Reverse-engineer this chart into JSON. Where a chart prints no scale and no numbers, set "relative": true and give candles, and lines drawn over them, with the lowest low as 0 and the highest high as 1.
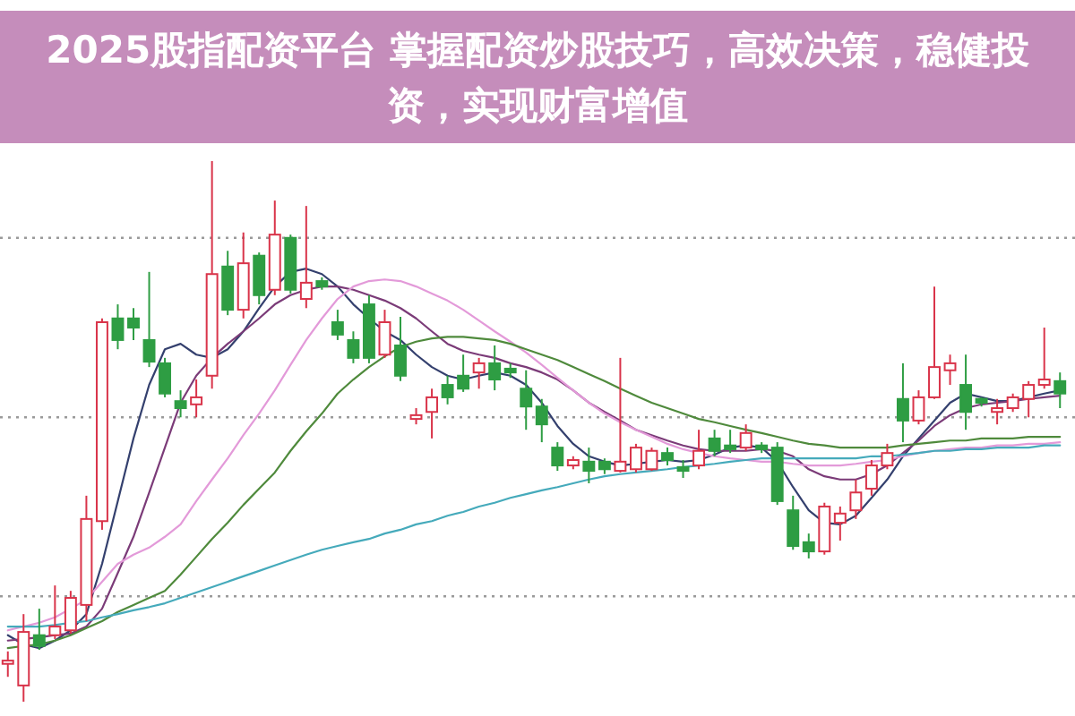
{
  "chart_data": {
    "type": "candlestick",
    "title": "2025股指配资平台 掌握配资炒股技巧，高效决策，稳健投资，实现财富增值",
    "relative": true,
    "line_style": "solid",
    "ref_lines": [
      {
        "axis": "y",
        "value": 0.858,
        "color": "#9a9a9a",
        "line_style": "dotted"
      },
      {
        "axis": "y",
        "value": 0.526,
        "color": "#9a9a9a",
        "line_style": "dotted"
      },
      {
        "axis": "y",
        "value": 0.195,
        "color": "#9a9a9a",
        "line_style": "dotted"
      }
    ],
    "categories": [
      null,
      null,
      null,
      null,
      null,
      null,
      null,
      null,
      null,
      null,
      null,
      null,
      null,
      null,
      null,
      null,
      null,
      null,
      null,
      null,
      null,
      null,
      null,
      null,
      null,
      null,
      null,
      null,
      null,
      null,
      null,
      null,
      null,
      null,
      null,
      null,
      null,
      null,
      null,
      null,
      null,
      null,
      null,
      null,
      null,
      null,
      null,
      null,
      null,
      null,
      null,
      null,
      null,
      null,
      null,
      null,
      null,
      null,
      null,
      null,
      null,
      null,
      null,
      null,
      null,
      null,
      null,
      null
    ],
    "ohlc": [
      [
        0.07,
        0.093,
        0.046,
        0.076
      ],
      [
        0.03,
        0.162,
        0,
        0.129
      ],
      [
        0.123,
        0.172,
        0.096,
        0.103
      ],
      [
        0.123,
        0.215,
        0.116,
        0.139
      ],
      [
        0.132,
        0.205,
        0.126,
        0.192
      ],
      [
        0.179,
        0.381,
        0.149,
        0.338
      ],
      [
        0.334,
        0.709,
        0.318,
        0.702
      ],
      [
        0.709,
        0.735,
        0.652,
        0.669
      ],
      [
        0.709,
        0.728,
        0.669,
        0.692
      ],
      [
        0.669,
        0.795,
        0.619,
        0.629
      ],
      [
        0.626,
        0.636,
        0.563,
        0.57
      ],
      [
        0.556,
        0.576,
        0.526,
        0.543
      ],
      [
        0.55,
        0.596,
        0.526,
        0.563
      ],
      [
        0.603,
        1,
        0.579,
        0.791
      ],
      [
        0.805,
        0.834,
        0.715,
        0.725
      ],
      [
        0.725,
        0.868,
        0.709,
        0.811
      ],
      [
        0.825,
        0.831,
        0.735,
        0.752
      ],
      [
        0.762,
        0.927,
        0.752,
        0.864
      ],
      [
        0.858,
        0.864,
        0.755,
        0.762
      ],
      [
        0.745,
        0.917,
        0.728,
        0.775
      ],
      [
        0.778,
        0.785,
        0.762,
        0.768
      ],
      [
        0.702,
        0.725,
        0.669,
        0.679
      ],
      [
        0.669,
        0.685,
        0.626,
        0.636
      ],
      [
        0.735,
        0.752,
        0.626,
        0.636
      ],
      [
        0.642,
        0.725,
        0.636,
        0.702
      ],
      [
        0.659,
        0.712,
        0.593,
        0.603
      ],
      [
        0.523,
        0.543,
        0.513,
        0.53
      ],
      [
        0.536,
        0.579,
        0.487,
        0.563
      ],
      [
        0.586,
        0.603,
        0.55,
        0.563
      ],
      [
        0.603,
        0.642,
        0.573,
        0.579
      ],
      [
        0.609,
        0.636,
        0.579,
        0.626
      ],
      [
        0.626,
        0.659,
        0.576,
        0.596
      ],
      [
        0.616,
        0.626,
        0.599,
        0.609
      ],
      [
        0.579,
        0.613,
        0.503,
        0.546
      ],
      [
        0.546,
        0.56,
        0.48,
        0.513
      ],
      [
        0.47,
        0.48,
        0.427,
        0.437
      ],
      [
        0.437,
        0.454,
        0.43,
        0.447
      ],
      [
        0.444,
        0.47,
        0.404,
        0.427
      ],
      [
        0.444,
        0.45,
        0.421,
        0.43
      ],
      [
        0.427,
        0.636,
        0.424,
        0.444
      ],
      [
        0.43,
        0.477,
        0.424,
        0.47
      ],
      [
        0.43,
        0.47,
        0.427,
        0.464
      ],
      [
        0.46,
        0.47,
        0.437,
        0.447
      ],
      [
        0.434,
        0.447,
        0.414,
        0.427
      ],
      [
        0.437,
        0.503,
        0.43,
        0.464
      ],
      [
        0.487,
        0.503,
        0.454,
        0.464
      ],
      [
        0.474,
        0.503,
        0.46,
        0.467
      ],
      [
        0.47,
        0.513,
        0.464,
        0.497
      ],
      [
        0.474,
        0.48,
        0.46,
        0.467
      ],
      [
        0.47,
        0.48,
        0.364,
        0.371
      ],
      [
        0.354,
        0.381,
        0.281,
        0.288
      ],
      [
        0.295,
        0.311,
        0.265,
        0.278
      ],
      [
        0.278,
        0.368,
        0.272,
        0.361
      ],
      [
        0.331,
        0.361,
        0.298,
        0.348
      ],
      [
        0.354,
        0.411,
        0.338,
        0.387
      ],
      [
        0.394,
        0.447,
        0.381,
        0.437
      ],
      [
        0.437,
        0.477,
        0.43,
        0.46
      ],
      [
        0.56,
        0.626,
        0.48,
        0.52
      ],
      [
        0.52,
        0.576,
        0.513,
        0.563
      ],
      [
        0.563,
        0.768,
        0.56,
        0.619
      ],
      [
        0.613,
        0.642,
        0.586,
        0.626
      ],
      [
        0.586,
        0.642,
        0.503,
        0.536
      ],
      [
        0.56,
        0.563,
        0.546,
        0.553
      ],
      [
        0.536,
        0.56,
        0.513,
        0.543
      ],
      [
        0.543,
        0.57,
        0.536,
        0.563
      ],
      [
        0.56,
        0.593,
        0.526,
        0.586
      ],
      [
        0.586,
        0.692,
        0.579,
        0.596
      ],
      [
        0.593,
        0.609,
        0.543,
        0.57
      ]
    ],
    "colors": [
      "#d9344a",
      "#d9344a",
      "#2e9d43",
      "#d9344a",
      "#d9344a",
      "#d9344a",
      "#d9344a",
      "#2e9d43",
      "#2e9d43",
      "#2e9d43",
      "#2e9d43",
      "#2e9d43",
      "#d9344a",
      "#d9344a",
      "#2e9d43",
      "#d9344a",
      "#2e9d43",
      "#d9344a",
      "#2e9d43",
      "#d9344a",
      "#2e9d43",
      "#2e9d43",
      "#2e9d43",
      "#2e9d43",
      "#d9344a",
      "#2e9d43",
      "#d9344a",
      "#d9344a",
      "#2e9d43",
      "#2e9d43",
      "#d9344a",
      "#2e9d43",
      "#2e9d43",
      "#2e9d43",
      "#2e9d43",
      "#2e9d43",
      "#d9344a",
      "#2e9d43",
      "#2e9d43",
      "#d9344a",
      "#d9344a",
      "#d9344a",
      "#2e9d43",
      "#2e9d43",
      "#d9344a",
      "#2e9d43",
      "#2e9d43",
      "#d9344a",
      "#2e9d43",
      "#2e9d43",
      "#2e9d43",
      "#2e9d43",
      "#d9344a",
      "#d9344a",
      "#d9344a",
      "#d9344a",
      "#d9344a",
      "#2e9d43",
      "#d9344a",
      "#d9344a",
      "#d9344a",
      "#2e9d43",
      "#2e9d43",
      "#d9344a",
      "#d9344a",
      "#d9344a",
      "#d9344a",
      "#2e9d43"
    ],
    "series": [
      {
        "type": "line",
        "color": "#34406e",
        "values": [
          0.123,
          0.106,
          0.099,
          0.113,
          0.132,
          0.162,
          0.255,
          0.371,
          0.487,
          0.586,
          0.652,
          0.662,
          0.642,
          0.636,
          0.652,
          0.685,
          0.728,
          0.768,
          0.795,
          0.801,
          0.791,
          0.768,
          0.735,
          0.709,
          0.685,
          0.669,
          0.642,
          0.619,
          0.603,
          0.596,
          0.603,
          0.609,
          0.603,
          0.586,
          0.553,
          0.51,
          0.477,
          0.454,
          0.444,
          0.437,
          0.44,
          0.444,
          0.447,
          0.444,
          0.447,
          0.457,
          0.47,
          0.474,
          0.47,
          0.444,
          0.397,
          0.354,
          0.331,
          0.328,
          0.344,
          0.377,
          0.411,
          0.454,
          0.487,
          0.52,
          0.553,
          0.57,
          0.563,
          0.556,
          0.556,
          0.563,
          0.57,
          0.576
        ]
      },
      {
        "type": "line",
        "color": "#7b3b78",
        "values": [
          0.113,
          0.116,
          0.119,
          0.123,
          0.126,
          0.139,
          0.172,
          0.238,
          0.305,
          0.387,
          0.47,
          0.553,
          0.603,
          0.636,
          0.662,
          0.685,
          0.709,
          0.735,
          0.752,
          0.762,
          0.768,
          0.768,
          0.762,
          0.752,
          0.742,
          0.728,
          0.709,
          0.685,
          0.662,
          0.649,
          0.642,
          0.636,
          0.626,
          0.619,
          0.609,
          0.596,
          0.576,
          0.553,
          0.536,
          0.52,
          0.503,
          0.493,
          0.483,
          0.474,
          0.467,
          0.464,
          0.464,
          0.464,
          0.467,
          0.464,
          0.454,
          0.43,
          0.417,
          0.411,
          0.411,
          0.421,
          0.437,
          0.46,
          0.483,
          0.51,
          0.53,
          0.543,
          0.55,
          0.553,
          0.556,
          0.56,
          0.563,
          0.566
        ]
      },
      {
        "type": "line",
        "color": "#e39ad9",
        "values": [
          0.132,
          0.139,
          0.146,
          0.156,
          0.172,
          0.189,
          0.222,
          0.255,
          0.272,
          0.285,
          0.305,
          0.328,
          0.371,
          0.411,
          0.45,
          0.493,
          0.533,
          0.576,
          0.623,
          0.669,
          0.709,
          0.745,
          0.768,
          0.778,
          0.781,
          0.778,
          0.768,
          0.755,
          0.742,
          0.725,
          0.705,
          0.685,
          0.666,
          0.646,
          0.623,
          0.599,
          0.576,
          0.553,
          0.533,
          0.517,
          0.503,
          0.49,
          0.477,
          0.467,
          0.46,
          0.454,
          0.45,
          0.447,
          0.444,
          0.444,
          0.44,
          0.437,
          0.437,
          0.437,
          0.44,
          0.444,
          0.447,
          0.454,
          0.46,
          0.464,
          0.467,
          0.47,
          0.47,
          0.474,
          0.474,
          0.477,
          0.477,
          0.48
        ]
      },
      {
        "type": "line",
        "color": "#4f8a3c",
        "values": [
          0.099,
          0.103,
          0.106,
          0.113,
          0.123,
          0.136,
          0.149,
          0.166,
          0.179,
          0.192,
          0.205,
          0.235,
          0.268,
          0.301,
          0.331,
          0.364,
          0.394,
          0.424,
          0.464,
          0.5,
          0.533,
          0.57,
          0.596,
          0.619,
          0.639,
          0.656,
          0.666,
          0.672,
          0.675,
          0.675,
          0.672,
          0.669,
          0.662,
          0.652,
          0.642,
          0.632,
          0.619,
          0.606,
          0.593,
          0.579,
          0.566,
          0.553,
          0.543,
          0.533,
          0.523,
          0.517,
          0.51,
          0.503,
          0.497,
          0.49,
          0.483,
          0.477,
          0.474,
          0.47,
          0.47,
          0.47,
          0.47,
          0.474,
          0.477,
          0.48,
          0.483,
          0.483,
          0.487,
          0.487,
          0.487,
          0.49,
          0.49,
          0.49
        ]
      },
      {
        "type": "line",
        "color": "#45aabb",
        "values": [
          0.139,
          0.139,
          0.139,
          0.142,
          0.146,
          0.149,
          0.156,
          0.162,
          0.169,
          0.175,
          0.182,
          0.192,
          0.202,
          0.212,
          0.222,
          0.232,
          0.242,
          0.252,
          0.262,
          0.272,
          0.281,
          0.288,
          0.295,
          0.301,
          0.311,
          0.318,
          0.328,
          0.334,
          0.344,
          0.351,
          0.361,
          0.368,
          0.377,
          0.384,
          0.391,
          0.397,
          0.404,
          0.411,
          0.417,
          0.421,
          0.424,
          0.427,
          0.43,
          0.434,
          0.437,
          0.44,
          0.444,
          0.447,
          0.45,
          0.45,
          0.45,
          0.45,
          0.45,
          0.45,
          0.45,
          0.454,
          0.454,
          0.457,
          0.46,
          0.464,
          0.464,
          0.467,
          0.467,
          0.47,
          0.47,
          0.47,
          0.474,
          0.474
        ]
      }
    ]
  }
}
